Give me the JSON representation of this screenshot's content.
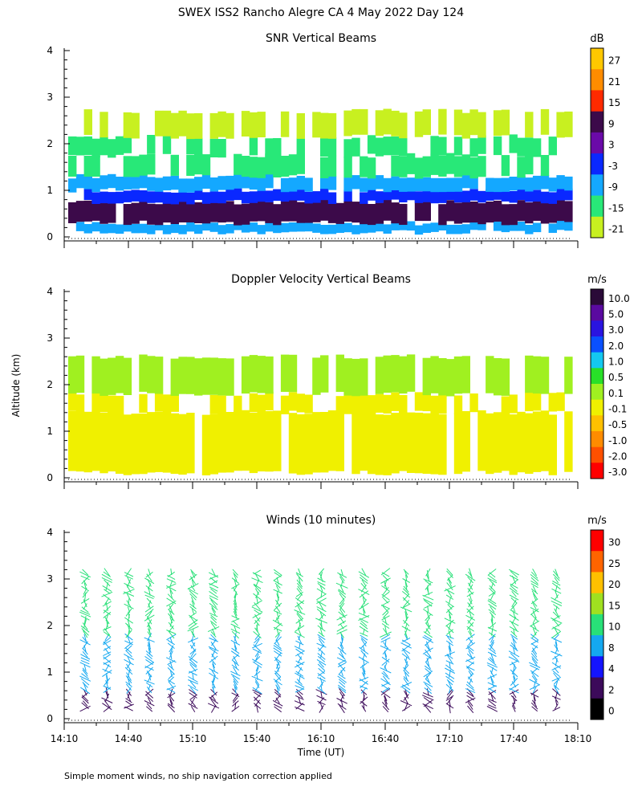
{
  "title": "SWEX ISS2 Rancho Alegre CA   4 May 2022 Day 124",
  "footnote": "Simple moment winds, no ship navigation correction applied",
  "shared_axes": {
    "ylabel": "Altitude (km)",
    "xlabel": "Time (UT)",
    "y_ticks": [
      "0",
      "1",
      "2",
      "3",
      "4"
    ],
    "ylim": [
      0,
      4
    ],
    "x_ticks": [
      "14:10",
      "14:40",
      "15:10",
      "15:40",
      "16:10",
      "16:40",
      "17:10",
      "17:40",
      "18:10"
    ],
    "xlim_hours": [
      14.1667,
      18.1667
    ]
  },
  "chart_data": [
    {
      "type": "heatmap",
      "title": "SNR Vertical Beams",
      "units": "dB",
      "xlabel": "",
      "ylabel": "Altitude (km)",
      "ylim": [
        0,
        4
      ],
      "colorbar_labels": [
        "27",
        "21",
        "15",
        "9",
        "3",
        "-3",
        "-9",
        "-15",
        "-21"
      ],
      "colorbar_colors": [
        "#ffc800",
        "#ff8c00",
        "#ff2a00",
        "#3c0a4a",
        "#6a0aa8",
        "#0a28ff",
        "#14a8ff",
        "#28e878",
        "#c8f020"
      ],
      "layers": [
        {
          "from_km": 0.1,
          "to_km": 0.3,
          "value_db": -9
        },
        {
          "from_km": 0.3,
          "to_km": 0.75,
          "value_db": 6
        },
        {
          "from_km": 0.75,
          "to_km": 1.0,
          "value_db": -3
        },
        {
          "from_km": 1.0,
          "to_km": 1.3,
          "value_db": -9
        },
        {
          "from_km": 1.3,
          "to_km": 1.75,
          "value_db": -15
        },
        {
          "from_km": 1.75,
          "to_km": 2.15,
          "value_db": -18
        },
        {
          "from_km": 2.15,
          "to_km": 2.7,
          "value_db": -21
        }
      ]
    },
    {
      "type": "heatmap",
      "title": "Doppler Velocity Vertical Beams",
      "units": "m/s",
      "xlabel": "",
      "ylabel": "Altitude (km)",
      "ylim": [
        0,
        4
      ],
      "colorbar_labels": [
        "10.0",
        "5.0",
        "3.0",
        "2.0",
        "1.0",
        "0.5",
        "0.1",
        "-0.1",
        "-0.5",
        "-1.0",
        "-2.0",
        "-3.0"
      ],
      "colorbar_colors": [
        "#2a0a38",
        "#5a0aa0",
        "#2a14e0",
        "#0a50ff",
        "#14c8f0",
        "#28e028",
        "#a0f020",
        "#f0f000",
        "#ffc000",
        "#ff8c00",
        "#ff5000",
        "#ff0000"
      ],
      "layers": [
        {
          "from_km": 0.1,
          "to_km": 1.4,
          "value_ms": -0.3
        },
        {
          "from_km": 1.4,
          "to_km": 1.8,
          "value_ms": -0.1
        },
        {
          "from_km": 1.8,
          "to_km": 2.6,
          "value_ms": 0.1
        }
      ]
    },
    {
      "type": "scatter",
      "subtype": "wind-barbs",
      "title": "Winds (10 minutes)",
      "units": "m/s",
      "xlabel": "Time (UT)",
      "ylabel": "Altitude (km)",
      "ylim": [
        0,
        4
      ],
      "colorbar_labels": [
        "30",
        "25",
        "20",
        "15",
        "10",
        "8",
        "4",
        "2",
        "0"
      ],
      "colorbar_colors": [
        "#ff0000",
        "#ff6400",
        "#ffc000",
        "#a0e020",
        "#28e078",
        "#14a8f0",
        "#1414ff",
        "#3c0a5a",
        "#000000"
      ],
      "profile_times_hours": [
        14.33,
        14.5,
        14.67,
        14.83,
        15.0,
        15.17,
        15.33,
        15.5,
        15.67,
        15.83,
        16.0,
        16.17,
        16.33,
        16.5,
        16.67,
        16.83,
        17.0,
        17.17,
        17.33,
        17.5,
        17.67,
        17.83,
        18.0
      ],
      "speed_by_altitude": [
        {
          "from_km": 0.2,
          "to_km": 0.6,
          "speed_ms": 1
        },
        {
          "from_km": 0.6,
          "to_km": 1.8,
          "speed_ms": 6
        },
        {
          "from_km": 1.8,
          "to_km": 2.6,
          "speed_ms": 10
        },
        {
          "from_km": 2.6,
          "to_km": 3.2,
          "speed_ms": 12
        }
      ]
    }
  ]
}
